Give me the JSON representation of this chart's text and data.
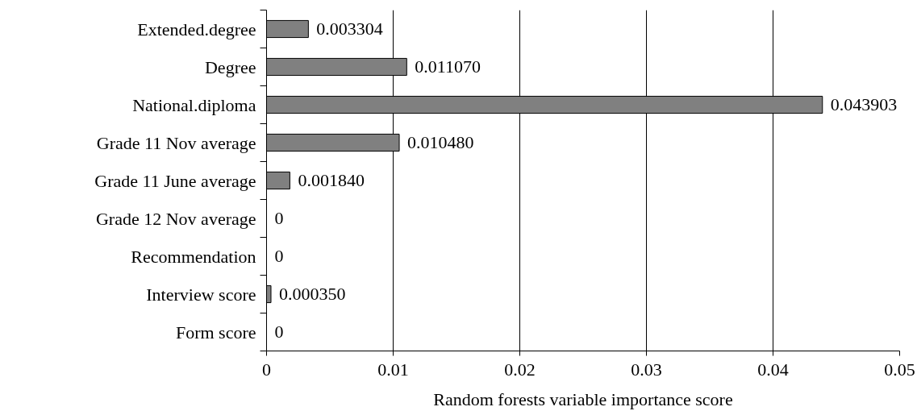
{
  "chart_data": {
    "type": "bar",
    "orientation": "horizontal",
    "xlabel": "Random forests variable importance score",
    "categories": [
      "Extended.degree",
      "Degree",
      "National.diploma",
      "Grade 11 Nov average",
      "Grade 11 June average",
      "Grade 12 Nov average",
      "Recommendation",
      "Interview score",
      "Form score"
    ],
    "values": [
      0.003304,
      0.01107,
      0.043903,
      0.01048,
      0.00184,
      0,
      0,
      0.00035,
      0
    ],
    "value_labels": [
      "0.003304",
      "0.011070",
      "0.043903",
      "0.010480",
      "0.001840",
      "0",
      "0",
      "0.000350",
      "0"
    ],
    "color": "#808080",
    "xlim": [
      0,
      0.05
    ],
    "xticks": [
      0,
      0.01,
      0.02,
      0.03,
      0.04,
      0.05
    ],
    "grid": "x"
  }
}
